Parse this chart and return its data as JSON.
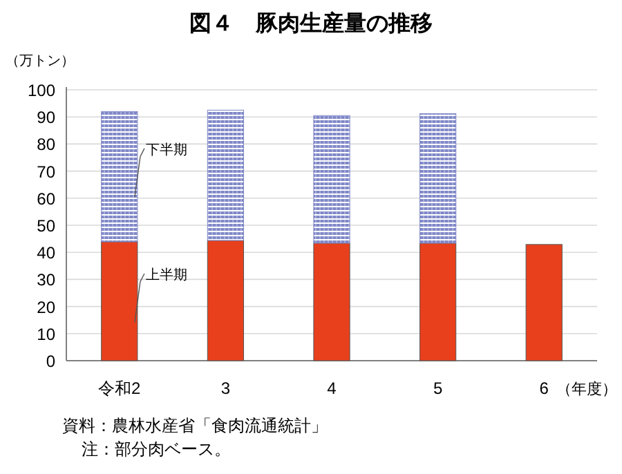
{
  "chart_data": {
    "type": "bar",
    "title": "図４　豚肉生産量の推移",
    "ylabel": "（万トン）",
    "xlabel": "（年度）",
    "categories": [
      "令和2",
      "3",
      "4",
      "5",
      "6"
    ],
    "stacked": true,
    "series": [
      {
        "name": "上半期",
        "color": "#e8401c",
        "values": [
          43.9,
          44.4,
          43.4,
          43.4,
          42.9
        ]
      },
      {
        "name": "下半期",
        "color": "#8088c8",
        "values": [
          48.1,
          48.1,
          47.1,
          47.8,
          null
        ]
      }
    ],
    "ylim": [
      0,
      100
    ],
    "yticks": [
      0,
      10,
      20,
      30,
      40,
      50,
      60,
      70,
      80,
      90,
      100
    ],
    "grid": "y",
    "annotations": [
      "資料：農林水産省「食肉流通統計」",
      "注：部分肉ベース。"
    ]
  }
}
